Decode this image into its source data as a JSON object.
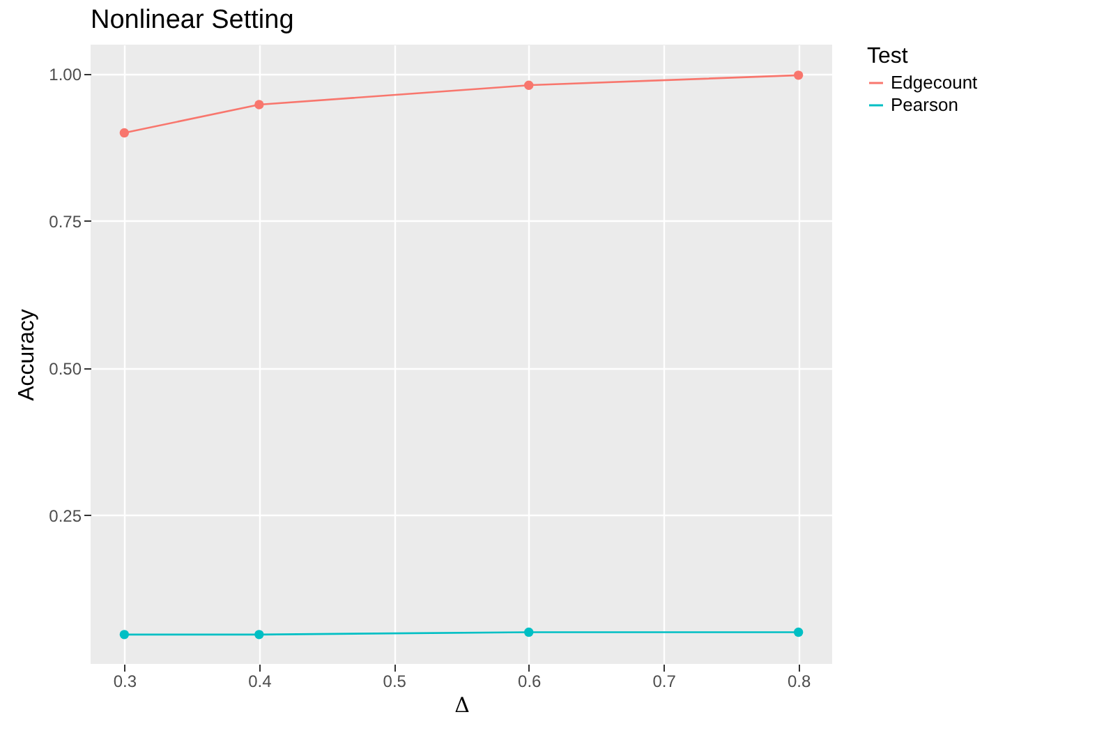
{
  "chart_data": {
    "type": "line",
    "title": "Nonlinear Setting",
    "xlabel": "Δ",
    "ylabel": "Accuracy",
    "legend_title": "Test",
    "x": [
      0.3,
      0.4,
      0.6,
      0.8
    ],
    "series": [
      {
        "name": "Edgecount",
        "color": "#f8766d",
        "values": [
          0.9,
          0.948,
          0.981,
          0.998
        ]
      },
      {
        "name": "Pearson",
        "color": "#00bfc4",
        "values": [
          0.047,
          0.047,
          0.051,
          0.051
        ]
      }
    ],
    "xlim": [
      0.275,
      0.825
    ],
    "ylim": [
      -0.003,
      1.05
    ],
    "xticks": [
      0.3,
      0.4,
      0.5,
      0.6,
      0.7,
      0.8
    ],
    "yticks": [
      {
        "value": 0.25,
        "label": "0.25"
      },
      {
        "value": 0.5,
        "label": "0.50"
      },
      {
        "value": 0.75,
        "label": "0.75"
      },
      {
        "value": 1.0,
        "label": "1.00"
      }
    ],
    "grid": true,
    "legend": "right",
    "marker": "circle",
    "line_style": "solid"
  }
}
